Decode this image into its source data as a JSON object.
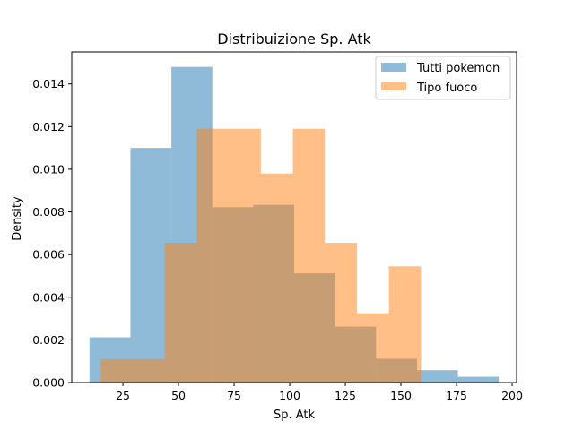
{
  "chart_data": {
    "type": "bar",
    "subtype": "histogram",
    "title": "Distribuizione Sp. Atk",
    "xlabel": "Sp. Atk",
    "ylabel": "Density",
    "xlim": [
      2,
      202
    ],
    "ylim": [
      0,
      0.0155
    ],
    "x_ticks": [
      25,
      50,
      75,
      100,
      125,
      150,
      175,
      200
    ],
    "y_ticks": [
      0.0,
      0.002,
      0.004,
      0.006,
      0.008,
      0.01,
      0.012,
      0.014
    ],
    "y_tick_labels": [
      "0.000",
      "0.002",
      "0.004",
      "0.006",
      "0.008",
      "0.010",
      "0.012",
      "0.014"
    ],
    "grid": false,
    "legend_position": "top-right",
    "series": [
      {
        "name": "Tutti pokemon",
        "color": "#1f77b4",
        "alpha": 0.5,
        "bin_edges": [
          10,
          28.4,
          46.8,
          65.2,
          83.6,
          102,
          120.4,
          138.8,
          157.2,
          175.6,
          194
        ],
        "values": [
          0.00212,
          0.011,
          0.0148,
          0.00822,
          0.00833,
          0.00512,
          0.00262,
          0.00112,
          0.00058,
          0.00027
        ]
      },
      {
        "name": "Tipo fuoco",
        "color": "#ff7f0e",
        "alpha": 0.5,
        "bin_edges": [
          15,
          29.4,
          43.8,
          58.2,
          72.6,
          87,
          101.4,
          115.8,
          130.2,
          144.6,
          159
        ],
        "values": [
          0.0011,
          0.0011,
          0.00655,
          0.0119,
          0.0119,
          0.0098,
          0.0119,
          0.00655,
          0.00325,
          0.00545
        ]
      }
    ]
  }
}
